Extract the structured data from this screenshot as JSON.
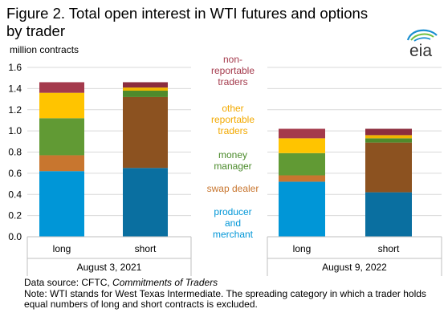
{
  "figure": {
    "title": "Figure 2. Total open interest in WTI futures and options by trader",
    "logo_text": "eia"
  },
  "chart_data": {
    "type": "bar",
    "stacked": true,
    "ylabel": "million contracts",
    "ylim": [
      0,
      1.6
    ],
    "yticks": [
      0.0,
      0.2,
      0.4,
      0.6,
      0.8,
      1.0,
      1.2,
      1.4,
      1.6
    ],
    "ytick_labels": [
      "0.0",
      "0.2",
      "0.4",
      "0.6",
      "0.8",
      "1.0",
      "1.2",
      "1.4",
      "1.6"
    ],
    "grid": true,
    "groups": [
      {
        "label": "August 3, 2021",
        "categories": [
          "long",
          "short"
        ],
        "series": [
          {
            "name": "producer and merchant",
            "values": [
              0.62,
              0.65
            ]
          },
          {
            "name": "swap dealer",
            "values": [
              0.15,
              0.67
            ]
          },
          {
            "name": "money manager",
            "values": [
              0.35,
              0.06
            ]
          },
          {
            "name": "other reportable traders",
            "values": [
              0.24,
              0.03
            ]
          },
          {
            "name": "non-reportable traders",
            "values": [
              0.1,
              0.05
            ]
          }
        ]
      },
      {
        "label": "August 9, 2022",
        "categories": [
          "long",
          "short"
        ],
        "series": [
          {
            "name": "producer and merchant",
            "values": [
              0.52,
              0.42
            ]
          },
          {
            "name": "swap dealer",
            "values": [
              0.06,
              0.47
            ]
          },
          {
            "name": "money manager",
            "values": [
              0.21,
              0.04
            ]
          },
          {
            "name": "other reportable traders",
            "values": [
              0.14,
              0.03
            ]
          },
          {
            "name": "non-reportable traders",
            "values": [
              0.09,
              0.06
            ]
          }
        ]
      }
    ],
    "colors": {
      "producer and merchant": {
        "long": "#0096d7",
        "short": "#0a6fa0"
      },
      "swap dealer": {
        "long": "#c8762f",
        "short": "#8c5220"
      },
      "money manager": {
        "long": "#619a34",
        "short": "#4f8a2c"
      },
      "other reportable traders": {
        "long": "#ffc400",
        "short": "#f0b400"
      },
      "non-reportable traders": {
        "long": "#a43a4c",
        "short": "#8c2d3e"
      }
    },
    "legend": [
      {
        "key": "non-reportable traders",
        "lines": [
          "non-",
          "reportable",
          "traders"
        ],
        "color": "#a43a4c"
      },
      {
        "key": "other reportable traders",
        "lines": [
          "other",
          "reportable",
          "traders"
        ],
        "color": "#f2a900"
      },
      {
        "key": "money manager",
        "lines": [
          "money",
          "manager"
        ],
        "color": "#4a8a2a"
      },
      {
        "key": "swap dealer",
        "lines": [
          "swap dealer"
        ],
        "color": "#c8762f"
      },
      {
        "key": "producer and merchant",
        "lines": [
          "producer",
          "and",
          "merchant"
        ],
        "color": "#0096d7"
      }
    ],
    "legend_placement": "center, between the two panels"
  },
  "notes": {
    "source_prefix": "Data source: CFTC,",
    "source_title": "Commitments of Traders",
    "note": "Note: WTI stands for West Texas Intermediate. The spreading category in which a trader holds equal numbers of long and short contracts is excluded."
  }
}
